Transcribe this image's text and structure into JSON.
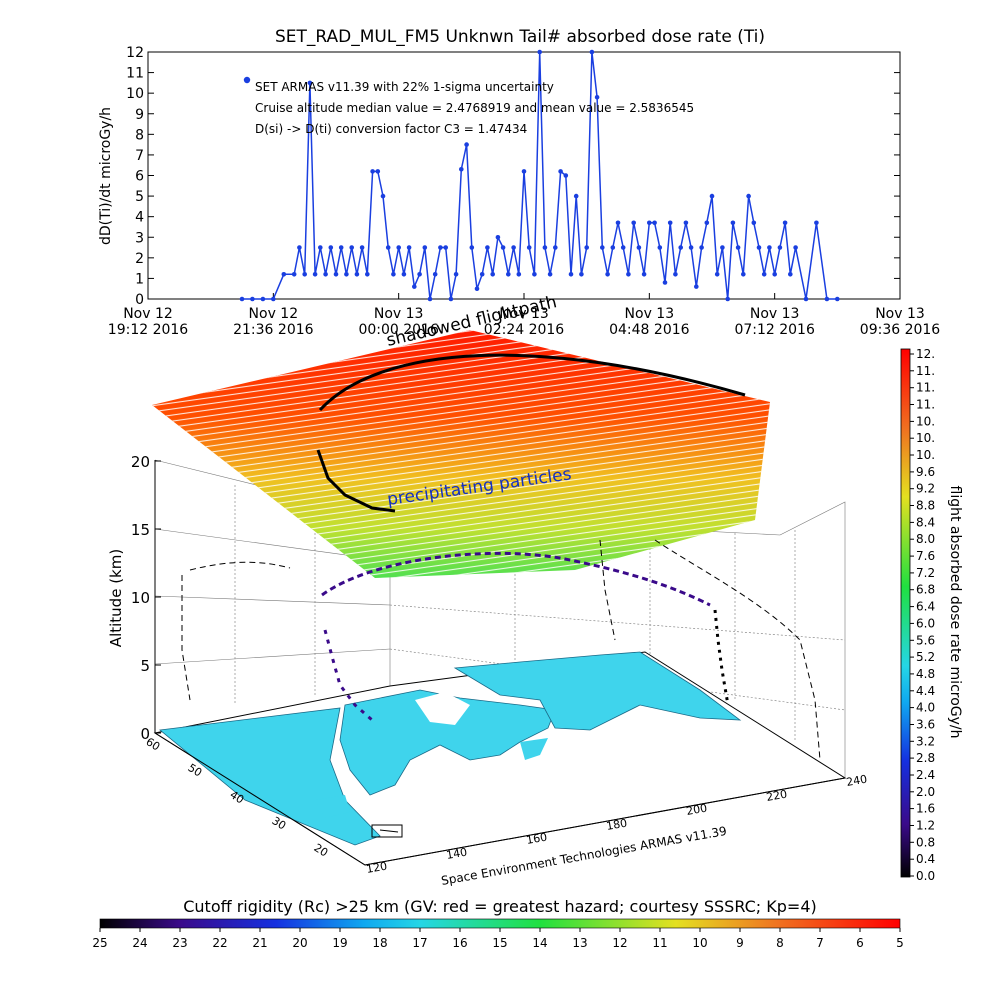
{
  "chart_data": [
    {
      "type": "line",
      "title": "SET_RAD_MUL_FM5 Unknwn Tail#  absorbed dose rate (Ti)",
      "ylabel": "dD(Ti)/dt microGy/h",
      "ylim": [
        0,
        12
      ],
      "yticks": [
        "0",
        "1",
        "2",
        "3",
        "4",
        "5",
        "6",
        "7",
        "8",
        "9",
        "10",
        "11",
        "12"
      ],
      "xticks": [
        {
          "day": "Nov 12",
          "time": "19:12 2016"
        },
        {
          "day": "Nov 12",
          "time": "21:36 2016"
        },
        {
          "day": "Nov 13",
          "time": "00:00 2016"
        },
        {
          "day": "Nov 13",
          "time": "02:24 2016"
        },
        {
          "day": "Nov 13",
          "time": "04:48 2016"
        },
        {
          "day": "Nov 13",
          "time": "07:12 2016"
        },
        {
          "day": "Nov 13",
          "time": "09:36 2016"
        }
      ],
      "annotations": [
        "SET ARMAS v11.39 with 22% 1-sigma uncertainty",
        "Cruise altitude median value = 2.4768919 and mean value = 2.5836545",
        "D(si) -> D(ti) conversion factor C3 = 1.47434"
      ],
      "series": [
        {
          "color": "#1a3fe0",
          "x_hours": [
            1.8,
            2.0,
            2.2,
            2.4,
            2.6,
            2.8,
            2.9,
            3.0,
            3.1,
            3.2,
            3.3,
            3.4,
            3.5,
            3.6,
            3.7,
            3.8,
            3.9,
            4.0,
            4.1,
            4.2,
            4.3,
            4.4,
            4.5,
            4.6,
            4.7,
            4.8,
            4.9,
            5.0,
            5.1,
            5.2,
            5.3,
            5.4,
            5.5,
            5.6,
            5.7,
            5.8,
            5.9,
            6.0,
            6.1,
            6.2,
            6.3,
            6.4,
            6.5,
            6.6,
            6.7,
            6.8,
            6.9,
            7.0,
            7.1,
            7.2,
            7.3,
            7.4,
            7.5,
            7.6,
            7.7,
            7.8,
            7.9,
            8.0,
            8.1,
            8.2,
            8.3,
            8.4,
            8.5,
            8.6,
            8.7,
            8.8,
            8.9,
            9.0,
            9.1,
            9.2,
            9.3,
            9.4,
            9.5,
            9.6,
            9.7,
            9.8,
            9.9,
            10.0,
            10.1,
            10.2,
            10.3,
            10.4,
            10.5,
            10.6,
            10.7,
            10.8,
            10.9,
            11.0,
            11.1,
            11.2,
            11.3,
            11.4,
            11.5,
            11.6,
            11.7,
            11.8,
            11.9,
            12.0,
            12.1,
            12.2,
            12.3,
            12.4,
            12.6,
            12.8,
            13.0,
            13.2
          ],
          "values": [
            0,
            0,
            0,
            0,
            1.2,
            1.2,
            2.5,
            1.2,
            10.5,
            1.2,
            2.5,
            1.2,
            2.5,
            1.2,
            2.5,
            1.2,
            2.5,
            1.2,
            2.5,
            1.2,
            6.2,
            6.2,
            5,
            2.5,
            1.2,
            2.5,
            1.2,
            2.5,
            0.6,
            1.2,
            2.5,
            0,
            1.2,
            2.5,
            2.5,
            0,
            1.2,
            6.3,
            7.5,
            2.5,
            0.5,
            1.2,
            2.5,
            1.2,
            3,
            2.5,
            1.2,
            2.5,
            1.2,
            6.2,
            2.5,
            1.2,
            12,
            2.5,
            1.2,
            2.5,
            6.2,
            6,
            1.2,
            5,
            1.2,
            2.5,
            12,
            9.8,
            2.5,
            1.2,
            2.5,
            3.7,
            2.5,
            1.2,
            3.7,
            2.5,
            1.2,
            3.7,
            3.7,
            2.5,
            0.8,
            3.7,
            1.2,
            2.5,
            3.7,
            2.5,
            0.6,
            2.5,
            3.7,
            5,
            1.2,
            2.5,
            0,
            3.7,
            2.5,
            1.2,
            5,
            3.7,
            2.5,
            1.2,
            2.5,
            1.2,
            2.5,
            3.7,
            1.2,
            2.5,
            0,
            3.7,
            0,
            0
          ]
        }
      ]
    },
    {
      "type": "scatter",
      "zlabel": "Altitude (km)",
      "zticks": [
        "0",
        "5",
        "10",
        "15",
        "20"
      ],
      "lat_ticks": [
        "60",
        "50",
        "40",
        "30",
        "20"
      ],
      "lon_ticks": [
        "120",
        "140",
        "160",
        "180",
        "200",
        "220",
        "240"
      ],
      "footer": "Space Environment Technologies ARMAS v11.39",
      "annotations": [
        "shadowed flightpath",
        "precipitating particles"
      ],
      "colorbar_label": "flight absorbed dose rate microGy/h",
      "colorbar_ticks": [
        "12.",
        "11.",
        "11.",
        "11.",
        "10.",
        "10.",
        "10.",
        "9.6",
        "9.2",
        "8.8",
        "8.4",
        "8.0",
        "7.6",
        "7.2",
        "6.8",
        "6.4",
        "6.0",
        "5.6",
        "5.2",
        "4.8",
        "4.4",
        "4.0",
        "3.6",
        "3.2",
        "2.8",
        "2.4",
        "2.0",
        "1.6",
        "1.2",
        "0.8",
        "0.4",
        "0.0"
      ]
    },
    {
      "type": "heatmap",
      "title": "Cutoff rigidity (Rc) >25 km (GV: red = greatest hazard; courtesy SSSRC; Kp=4)",
      "ticks": [
        "25",
        "24",
        "23",
        "22",
        "21",
        "20",
        "19",
        "18",
        "17",
        "16",
        "15",
        "14",
        "13",
        "12",
        "11",
        "10",
        "9",
        "8",
        "7",
        "6",
        "5"
      ]
    }
  ]
}
